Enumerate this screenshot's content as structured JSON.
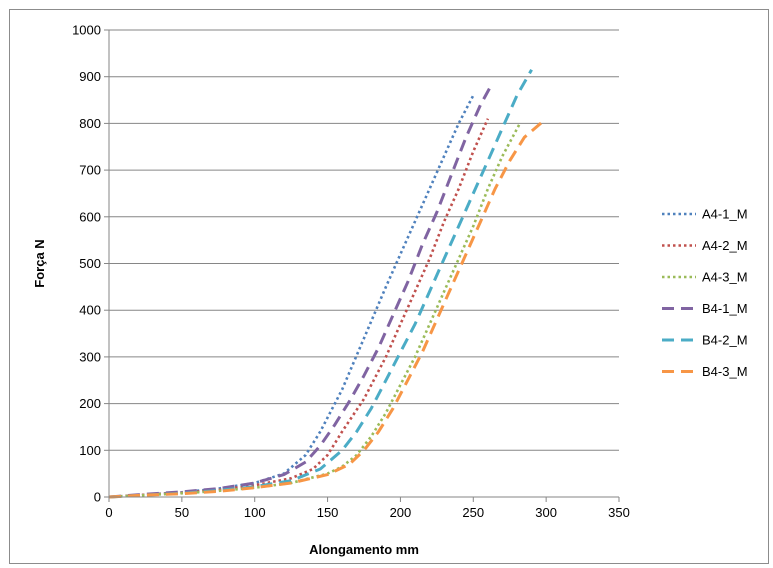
{
  "chart_data": {
    "type": "line",
    "title": "",
    "xlabel": "Alongamento mm",
    "ylabel": "Força N",
    "xlim": [
      0,
      350
    ],
    "ylim": [
      0,
      1000
    ],
    "xticks": [
      0,
      50,
      100,
      150,
      200,
      250,
      300,
      350
    ],
    "yticks": [
      0,
      100,
      200,
      300,
      400,
      500,
      600,
      700,
      800,
      900,
      1000
    ],
    "grid": "horizontal",
    "legend_position": "right",
    "series": [
      {
        "name": "A4-1_M",
        "color": "#4f81bd",
        "style": "dotted",
        "x": [
          0,
          25,
          50,
          75,
          100,
          120,
          135,
          145,
          160,
          175,
          190,
          200,
          210,
          220,
          230,
          240,
          250
        ],
        "y": [
          0,
          5,
          10,
          18,
          30,
          50,
          90,
          140,
          230,
          340,
          450,
          520,
          590,
          660,
          730,
          800,
          860
        ]
      },
      {
        "name": "A4-2_M",
        "color": "#c0504d",
        "style": "dotted",
        "x": [
          0,
          25,
          50,
          75,
          100,
          125,
          140,
          150,
          160,
          175,
          190,
          200,
          210,
          220,
          230,
          240,
          250,
          260
        ],
        "y": [
          0,
          5,
          9,
          15,
          25,
          40,
          60,
          90,
          140,
          210,
          300,
          370,
          440,
          510,
          590,
          660,
          740,
          810
        ]
      },
      {
        "name": "A4-3_M",
        "color": "#9bbb59",
        "style": "dotted",
        "x": [
          0,
          25,
          50,
          75,
          100,
          125,
          150,
          160,
          170,
          180,
          190,
          200,
          210,
          220,
          230,
          240,
          250,
          260,
          270,
          282
        ],
        "y": [
          0,
          4,
          8,
          13,
          20,
          30,
          50,
          65,
          90,
          130,
          180,
          240,
          300,
          370,
          440,
          510,
          580,
          660,
          730,
          800
        ]
      },
      {
        "name": "B4-1_M",
        "color": "#8064a2",
        "style": "dashed",
        "x": [
          0,
          25,
          50,
          75,
          100,
          120,
          135,
          145,
          155,
          165,
          175,
          185,
          195,
          205,
          215,
          225,
          235,
          245,
          255,
          262
        ],
        "y": [
          0,
          6,
          11,
          18,
          30,
          48,
          75,
          110,
          155,
          205,
          260,
          320,
          390,
          460,
          540,
          610,
          690,
          770,
          840,
          880
        ]
      },
      {
        "name": "B4-2_M",
        "color": "#4bacc6",
        "style": "dashed",
        "x": [
          0,
          25,
          50,
          75,
          100,
          125,
          145,
          160,
          170,
          180,
          190,
          200,
          210,
          220,
          230,
          240,
          250,
          260,
          270,
          280,
          290
        ],
        "y": [
          0,
          4,
          8,
          14,
          22,
          35,
          60,
          100,
          140,
          190,
          250,
          310,
          370,
          440,
          510,
          580,
          650,
          720,
          790,
          860,
          915
        ]
      },
      {
        "name": "B4-3_M",
        "color": "#f79646",
        "style": "dashed",
        "x": [
          0,
          25,
          50,
          75,
          100,
          125,
          150,
          165,
          175,
          185,
          195,
          205,
          215,
          225,
          235,
          245,
          255,
          265,
          275,
          285,
          300
        ],
        "y": [
          0,
          4,
          7,
          12,
          20,
          30,
          48,
          70,
          100,
          140,
          190,
          250,
          310,
          380,
          450,
          520,
          590,
          660,
          720,
          770,
          810
        ]
      }
    ]
  }
}
